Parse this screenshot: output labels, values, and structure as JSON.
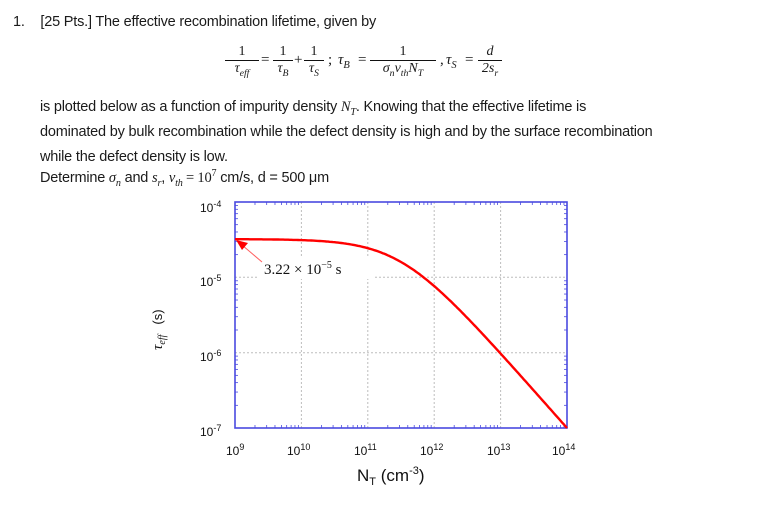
{
  "problem": {
    "number": "1.",
    "points": "[25 Pts.]",
    "intro": "The effective recombination lifetime, given by",
    "equation": {
      "lhs_num": "1",
      "lhs_den": "τ",
      "lhs_den_sub": "eff",
      "t1_num": "1",
      "t1_den": "τ",
      "t1_den_sub": "B",
      "t2_num": "1",
      "t2_den": "τ",
      "t2_den_sub": "S",
      "tauB_label": "τ",
      "tauB_sub": "B",
      "tauB_num": "1",
      "tauB_den": "σ_n v_th N_T",
      "tauS_label": "τ",
      "tauS_sub": "S",
      "tauS_num": "d",
      "tauS_den": "2s_r"
    },
    "para1_a": "is plotted below as a function of impurity density ",
    "para1_var": "N",
    "para1_var_sub": "T",
    "para1_b": ". Knowing that the effective lifetime is",
    "para2": "dominated by bulk recombination while the defect density is high and by the surface recombination",
    "para3": "while the defect density is low.",
    "determine_a": "Determine ",
    "determine_sigma": "σ",
    "determine_sigma_sub": "n",
    "determine_and": " and ",
    "determine_s": "s",
    "determine_s_sub": "r",
    "determine_comma": ", ",
    "determine_v": "v",
    "determine_v_sub": "th",
    "determine_rest": " = 10",
    "determine_exp": "7",
    "determine_tail": " cm/s, d = 500 μm"
  },
  "chart_data": {
    "type": "line",
    "title": "",
    "xlabel": "N_T (cm^-3)",
    "ylabel": "τ_eff (s)",
    "xscale": "log",
    "yscale": "log",
    "xlim": [
      1000000000.0,
      100000000000000.0
    ],
    "ylim": [
      1e-07,
      0.0001
    ],
    "grid": true,
    "x_tick_labels": [
      "10^9",
      "10^10",
      "10^11",
      "10^12",
      "10^13",
      "10^14"
    ],
    "y_tick_labels": [
      "10^-4",
      "10^-5",
      "10^-6",
      "10^-7"
    ],
    "series": [
      {
        "name": "tau_eff",
        "color": "#ff0000",
        "x": [
          1000000000.0,
          10000000000.0,
          100000000000.0,
          300000000000.0,
          1000000000000.0,
          3000000000000.0,
          10000000000000.0,
          30000000000000.0,
          100000000000000.0
        ],
        "y": [
          3.22e-05,
          3.1e-05,
          2.4e-05,
          1.6e-05,
          1e-05,
          4e-06,
          1e-06,
          3.3e-07,
          1e-07
        ]
      }
    ],
    "annotations": [
      {
        "text": "3.22 × 10^-5 s",
        "points_to": [
          1000000000.0,
          3.22e-05
        ]
      }
    ],
    "frame_color": "#4a4adf"
  },
  "plot_labels": {
    "annotation_main": "3.22 × 10",
    "annotation_exp": "−5",
    "annotation_unit": " s",
    "xlabel_main": "N",
    "xlabel_sub": "T",
    "xlabel_unit": " (cm",
    "xlabel_exp": "-3",
    "xlabel_close": ")",
    "ylabel_tau": "τ",
    "ylabel_sub": "eff",
    "ylabel_unit": "(s)",
    "yticks": [
      {
        "base": "10",
        "exp": "-4"
      },
      {
        "base": "10",
        "exp": "-5"
      },
      {
        "base": "10",
        "exp": "-6"
      },
      {
        "base": "10",
        "exp": "-7"
      }
    ],
    "xticks": [
      {
        "base": "10",
        "exp": "9"
      },
      {
        "base": "10",
        "exp": "10"
      },
      {
        "base": "10",
        "exp": "11"
      },
      {
        "base": "10",
        "exp": "12"
      },
      {
        "base": "10",
        "exp": "13"
      },
      {
        "base": "10",
        "exp": "14"
      }
    ]
  }
}
